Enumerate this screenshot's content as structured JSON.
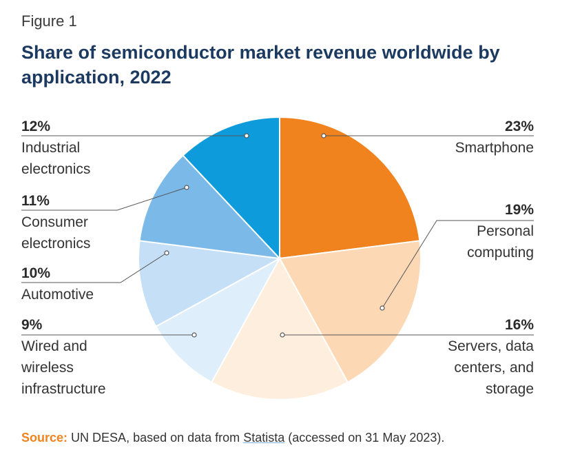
{
  "figure_label": "Figure 1",
  "title": "Share of semiconductor market revenue worldwide by application, 2022",
  "source": {
    "label": "Source:",
    "text_before": "UN DESA, based on data from",
    "link_text": "Statista",
    "text_after": "(accessed on 31 May 2023)."
  },
  "chart_data": {
    "type": "pie",
    "title": "Share of semiconductor market revenue worldwide by application, 2022",
    "unit": "%",
    "slices": [
      {
        "name": "Smartphone",
        "label_lines": [
          "Smartphone"
        ],
        "value": 23,
        "pct_label": "23%",
        "color": "#f0831e"
      },
      {
        "name": "Personal computing",
        "label_lines": [
          "Personal",
          "computing"
        ],
        "value": 19,
        "pct_label": "19%",
        "color": "#fdd8b5"
      },
      {
        "name": "Servers, data centers, and storage",
        "label_lines": [
          "Servers, data",
          "centers, and",
          "storage"
        ],
        "value": 16,
        "pct_label": "16%",
        "color": "#feeedd"
      },
      {
        "name": "Wired and wireless infrastructure",
        "label_lines": [
          "Wired and",
          "wireless",
          "infrastructure"
        ],
        "value": 9,
        "pct_label": "9%",
        "color": "#deeefa"
      },
      {
        "name": "Automotive",
        "label_lines": [
          "Automotive"
        ],
        "value": 10,
        "pct_label": "10%",
        "color": "#c5e0f6"
      },
      {
        "name": "Consumer electronics",
        "label_lines": [
          "Consumer",
          "electronics"
        ],
        "value": 11,
        "pct_label": "11%",
        "color": "#7ab9e8"
      },
      {
        "name": "Industrial electronics",
        "label_lines": [
          "Industrial",
          "electronics"
        ],
        "value": 12,
        "pct_label": "12%",
        "color": "#0e9bdb"
      }
    ],
    "start_angle_deg": 0,
    "direction": "clockwise"
  }
}
